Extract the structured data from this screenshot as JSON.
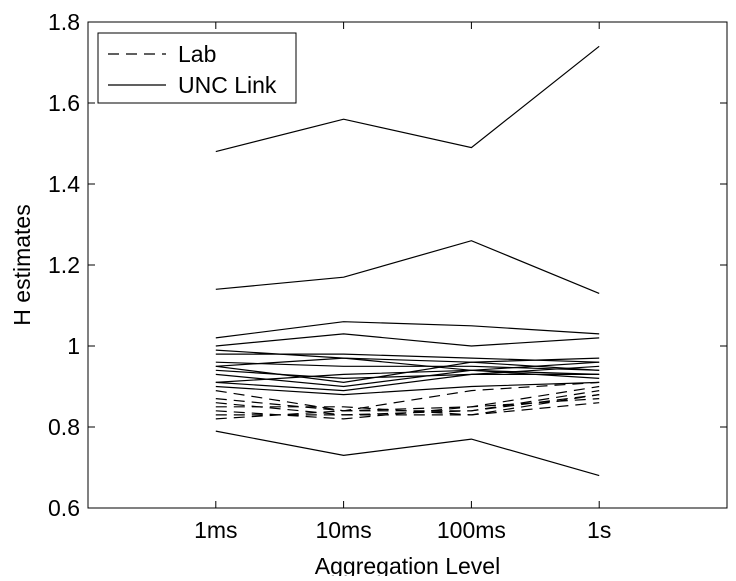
{
  "chart_data": {
    "type": "line",
    "categories": [
      "1ms",
      "10ms",
      "100ms",
      "1s"
    ],
    "xlabel": "Aggregation Level",
    "ylabel": "H estimates",
    "ylim": [
      0.6,
      1.8
    ],
    "yticks": [
      "0.6",
      "0.8",
      "1",
      "1.2",
      "1.4",
      "1.6",
      "1.8"
    ],
    "grid": false,
    "legend": {
      "position": "top-left",
      "entries": [
        {
          "label": "Lab",
          "style": "dashed"
        },
        {
          "label": "UNC Link",
          "style": "solid"
        }
      ]
    },
    "series": [
      {
        "group": "UNC Link",
        "values": [
          1.48,
          1.56,
          1.49,
          1.74
        ]
      },
      {
        "group": "UNC Link",
        "values": [
          1.14,
          1.17,
          1.26,
          1.13
        ]
      },
      {
        "group": "UNC Link",
        "values": [
          1.02,
          1.06,
          1.05,
          1.03
        ]
      },
      {
        "group": "UNC Link",
        "values": [
          1.0,
          1.03,
          1.0,
          1.02
        ]
      },
      {
        "group": "UNC Link",
        "values": [
          0.99,
          0.97,
          0.96,
          0.97
        ]
      },
      {
        "group": "UNC Link",
        "values": [
          0.98,
          0.98,
          0.97,
          0.96
        ]
      },
      {
        "group": "UNC Link",
        "values": [
          0.96,
          0.95,
          0.95,
          0.94
        ]
      },
      {
        "group": "UNC Link",
        "values": [
          0.95,
          0.97,
          0.94,
          0.93
        ]
      },
      {
        "group": "UNC Link",
        "values": [
          0.95,
          0.91,
          0.96,
          0.94
        ]
      },
      {
        "group": "UNC Link",
        "values": [
          0.94,
          0.92,
          0.93,
          0.95
        ]
      },
      {
        "group": "UNC Link",
        "values": [
          0.93,
          0.9,
          0.94,
          0.96
        ]
      },
      {
        "group": "UNC Link",
        "values": [
          0.91,
          0.93,
          0.94,
          0.92
        ]
      },
      {
        "group": "UNC Link",
        "values": [
          0.91,
          0.89,
          0.93,
          0.93
        ]
      },
      {
        "group": "UNC Link",
        "values": [
          0.9,
          0.88,
          0.9,
          0.91
        ]
      },
      {
        "group": "UNC Link",
        "values": [
          0.79,
          0.73,
          0.77,
          0.68
        ]
      },
      {
        "group": "Lab",
        "values": [
          0.87,
          0.84,
          0.85,
          0.9
        ]
      },
      {
        "group": "Lab",
        "values": [
          0.86,
          0.83,
          0.84,
          0.89
        ]
      },
      {
        "group": "Lab",
        "values": [
          0.85,
          0.85,
          0.83,
          0.88
        ]
      },
      {
        "group": "Lab",
        "values": [
          0.84,
          0.82,
          0.85,
          0.87
        ]
      },
      {
        "group": "Lab",
        "values": [
          0.83,
          0.83,
          0.83,
          0.86
        ]
      },
      {
        "group": "Lab",
        "values": [
          0.82,
          0.84,
          0.84,
          0.88
        ]
      },
      {
        "group": "Lab",
        "values": [
          0.89,
          0.84,
          0.89,
          0.91
        ]
      }
    ]
  }
}
